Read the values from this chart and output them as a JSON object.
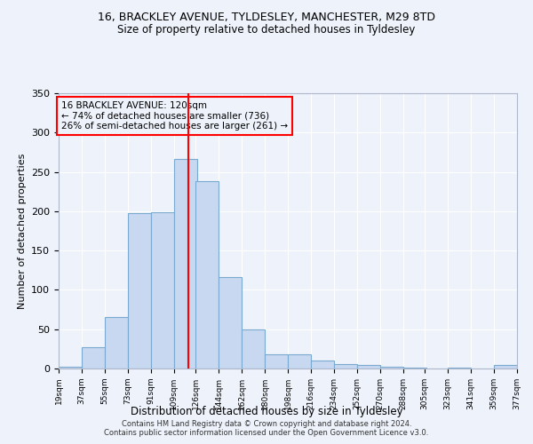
{
  "title": "16, BRACKLEY AVENUE, TYLDESLEY, MANCHESTER, M29 8TD",
  "subtitle": "Size of property relative to detached houses in Tyldesley",
  "xlabel": "Distribution of detached houses by size in Tyldesley",
  "ylabel": "Number of detached properties",
  "bar_color": "#c8d8f0",
  "bar_edge_color": "#7aaad0",
  "background_color": "#eef2fb",
  "grid_color": "#ffffff",
  "annotation_line_color": "red",
  "annotation_box_color": "red",
  "annotation_text": "16 BRACKLEY AVENUE: 120sqm\n← 74% of detached houses are smaller (736)\n26% of semi-detached houses are larger (261) →",
  "property_size": 120,
  "footer": "Contains HM Land Registry data © Crown copyright and database right 2024.\nContains public sector information licensed under the Open Government Licence v3.0.",
  "bin_edges": [
    19,
    37,
    55,
    73,
    91,
    109,
    126,
    144,
    162,
    180,
    198,
    216,
    234,
    252,
    270,
    288,
    305,
    323,
    341,
    359,
    377
  ],
  "bar_heights": [
    2,
    27,
    65,
    198,
    199,
    267,
    238,
    116,
    50,
    18,
    18,
    10,
    6,
    5,
    2,
    1,
    0,
    1,
    0,
    5
  ],
  "ylim": [
    0,
    350
  ],
  "yticks": [
    0,
    50,
    100,
    150,
    200,
    250,
    300,
    350
  ]
}
